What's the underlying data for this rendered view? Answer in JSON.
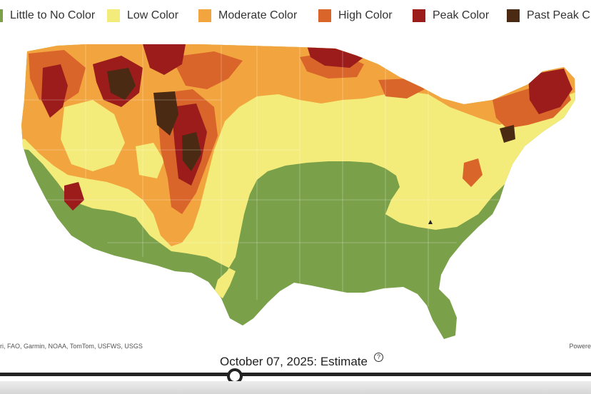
{
  "legend": [
    {
      "label": "Little to No Color",
      "color": "#7aa04a"
    },
    {
      "label": "Low Color",
      "color": "#f3ec7a"
    },
    {
      "label": "Moderate Color",
      "color": "#f2a53f"
    },
    {
      "label": "High Color",
      "color": "#d9652a"
    },
    {
      "label": "Peak Color",
      "color": "#9c1c1c"
    },
    {
      "label": "Past Peak C",
      "color": "#4a2a12"
    }
  ],
  "map": {
    "attribution": "ri, FAO, Garmin, NOAA, TomTom, USFWS, USGS",
    "powered_by": "Powere",
    "region": "Contiguous United States"
  },
  "timeline": {
    "date_label": "October 07, 2025: Estimate",
    "help_icon": "question-circle-icon",
    "position": 0.39
  }
}
